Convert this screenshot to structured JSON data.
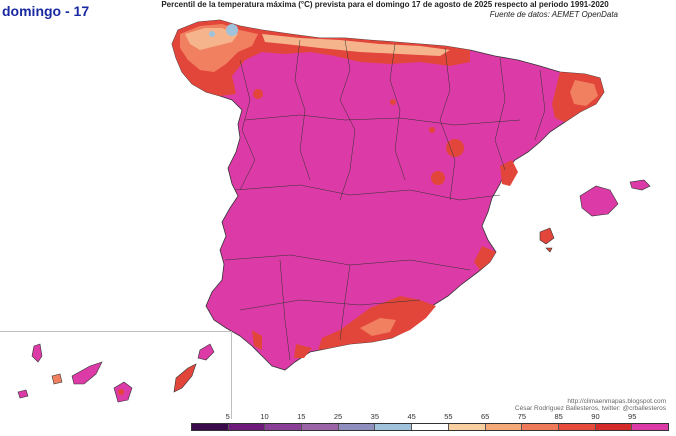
{
  "header": {
    "day_label": "domingo - 17",
    "title": "Percentil de la temperatura máxima (°C) prevista para el domingo 17 de agosto de 2025 respecto al periodo 1991-2020",
    "source": "Fuente de datos: AEMET OpenData"
  },
  "credits": {
    "website": "http://climaenmapas.blogspot.com",
    "author": "César Rodríguez Ballesteros, twitter: @crballesteros"
  },
  "legend": {
    "ticks": [
      "5",
      "10",
      "15",
      "25",
      "35",
      "45",
      "55",
      "65",
      "75",
      "85",
      "90",
      "95"
    ],
    "colors": [
      "#3b0a4a",
      "#6e1a7a",
      "#8a3f96",
      "#9b63a8",
      "#8f8fbf",
      "#9fc3dd",
      "#ffffff",
      "#f7cfa0",
      "#f5a878",
      "#ef7a5a",
      "#e64b3c",
      "#d42a2a",
      "#dc3aa6"
    ]
  },
  "map": {
    "dominant_color": "#dc3aa6",
    "hot_color": "#e2463a",
    "warm_color": "#f08060",
    "mild_color": "#f6b48c",
    "cool_color": "#9fc3dd",
    "border_color": "#333333"
  }
}
